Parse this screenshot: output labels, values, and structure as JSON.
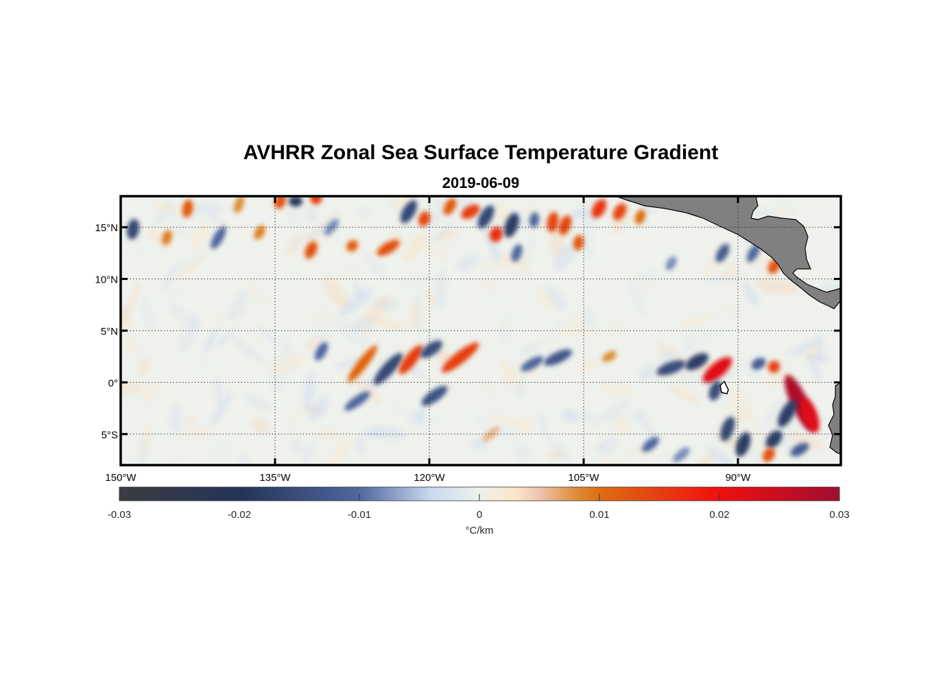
{
  "figure": {
    "title": "AVHRR Zonal Sea Surface Temperature Gradient",
    "subtitle": "2019-06-09"
  },
  "map": {
    "lon_range": [
      -150,
      -80
    ],
    "lat_range": [
      -8,
      18
    ],
    "lon_ticks": [
      {
        "value": -150,
        "label": "150°W"
      },
      {
        "value": -135,
        "label": "135°W"
      },
      {
        "value": -120,
        "label": "120°W"
      },
      {
        "value": -105,
        "label": "105°W"
      },
      {
        "value": -90,
        "label": "90°W"
      }
    ],
    "lat_ticks": [
      {
        "value": 15,
        "label": "15°N"
      },
      {
        "value": 10,
        "label": "10°N"
      },
      {
        "value": 5,
        "label": "5°N"
      },
      {
        "value": 0,
        "label": "0°"
      },
      {
        "value": -5,
        "label": "5°S"
      }
    ],
    "land_color": "#808080",
    "features": [
      {
        "lon": -148.8,
        "lat": 14.8,
        "value": -0.016,
        "len": 2.0,
        "ang": 80
      },
      {
        "lon": -145.5,
        "lat": 14.0,
        "value": 0.009,
        "len": 1.5,
        "ang": 70
      },
      {
        "lon": -143.5,
        "lat": 16.8,
        "value": 0.012,
        "len": 1.8,
        "ang": 80
      },
      {
        "lon": -140.5,
        "lat": 14.0,
        "value": -0.01,
        "len": 2.5,
        "ang": 60
      },
      {
        "lon": -138.5,
        "lat": 17.2,
        "value": 0.008,
        "len": 1.8,
        "ang": 70
      },
      {
        "lon": -136.5,
        "lat": 14.5,
        "value": 0.009,
        "len": 1.5,
        "ang": 60
      },
      {
        "lon": -134.5,
        "lat": 17.5,
        "value": 0.013,
        "len": 1.5,
        "ang": 70
      },
      {
        "lon": -133.0,
        "lat": 17.5,
        "value": -0.02,
        "len": 1.0,
        "ang": 90
      },
      {
        "lon": -131.0,
        "lat": 17.8,
        "value": 0.015,
        "len": 1.2,
        "ang": 70
      },
      {
        "lon": -131.5,
        "lat": 12.8,
        "value": 0.013,
        "len": 1.8,
        "ang": 65
      },
      {
        "lon": -129.5,
        "lat": 15.0,
        "value": -0.008,
        "len": 2.0,
        "ang": 50
      },
      {
        "lon": -127.5,
        "lat": 13.2,
        "value": 0.012,
        "len": 1.2,
        "ang": 40
      },
      {
        "lon": -124.0,
        "lat": 13.0,
        "value": 0.013,
        "len": 2.5,
        "ang": 30
      },
      {
        "lon": -122.0,
        "lat": 16.5,
        "value": -0.016,
        "len": 2.5,
        "ang": 60
      },
      {
        "lon": -120.5,
        "lat": 15.8,
        "value": 0.014,
        "len": 1.5,
        "ang": 70
      },
      {
        "lon": -118.0,
        "lat": 17.0,
        "value": 0.012,
        "len": 1.8,
        "ang": 60
      },
      {
        "lon": -116.0,
        "lat": 16.5,
        "value": 0.015,
        "len": 2.0,
        "ang": 30
      },
      {
        "lon": -114.5,
        "lat": 16.0,
        "value": -0.016,
        "len": 2.5,
        "ang": 60
      },
      {
        "lon": -113.5,
        "lat": 14.3,
        "value": 0.017,
        "len": 1.5,
        "ang": 70
      },
      {
        "lon": -112.0,
        "lat": 15.2,
        "value": -0.018,
        "len": 2.5,
        "ang": 70
      },
      {
        "lon": -111.5,
        "lat": 12.5,
        "value": -0.01,
        "len": 1.8,
        "ang": 70
      },
      {
        "lon": -109.8,
        "lat": 15.7,
        "value": -0.01,
        "len": 1.5,
        "ang": 80
      },
      {
        "lon": -108.0,
        "lat": 15.5,
        "value": 0.014,
        "len": 2.0,
        "ang": 80
      },
      {
        "lon": -106.8,
        "lat": 15.2,
        "value": 0.014,
        "len": 2.0,
        "ang": 70
      },
      {
        "lon": -105.5,
        "lat": 13.5,
        "value": 0.012,
        "len": 1.5,
        "ang": 80
      },
      {
        "lon": -103.5,
        "lat": 16.8,
        "value": 0.016,
        "len": 2.0,
        "ang": 60
      },
      {
        "lon": -101.5,
        "lat": 16.5,
        "value": 0.014,
        "len": 1.8,
        "ang": 60
      },
      {
        "lon": -99.5,
        "lat": 16.0,
        "value": 0.01,
        "len": 1.5,
        "ang": 70
      },
      {
        "lon": -91.5,
        "lat": 12.5,
        "value": -0.012,
        "len": 2.0,
        "ang": 60
      },
      {
        "lon": -88.5,
        "lat": 12.5,
        "value": -0.01,
        "len": 2.0,
        "ang": 60
      },
      {
        "lon": -86.5,
        "lat": 11.2,
        "value": 0.013,
        "len": 1.5,
        "ang": 60
      },
      {
        "lon": -96.5,
        "lat": 11.5,
        "value": -0.008,
        "len": 1.5,
        "ang": 60
      },
      {
        "lon": -126.5,
        "lat": 1.8,
        "value": 0.011,
        "len": 4.5,
        "ang": 52
      },
      {
        "lon": -124.0,
        "lat": 1.3,
        "value": -0.016,
        "len": 4.0,
        "ang": 48
      },
      {
        "lon": -121.8,
        "lat": 2.2,
        "value": 0.015,
        "len": 3.5,
        "ang": 52
      },
      {
        "lon": -119.8,
        "lat": 3.2,
        "value": -0.015,
        "len": 2.5,
        "ang": 35
      },
      {
        "lon": -117.0,
        "lat": 2.4,
        "value": 0.015,
        "len": 4.5,
        "ang": 38
      },
      {
        "lon": -119.5,
        "lat": -1.3,
        "value": -0.014,
        "len": 3.0,
        "ang": 35
      },
      {
        "lon": -130.5,
        "lat": 3.0,
        "value": -0.01,
        "len": 2.0,
        "ang": 60
      },
      {
        "lon": -127.0,
        "lat": -1.8,
        "value": -0.01,
        "len": 3.0,
        "ang": 35
      },
      {
        "lon": -110.0,
        "lat": 1.8,
        "value": -0.01,
        "len": 2.5,
        "ang": 30
      },
      {
        "lon": -107.5,
        "lat": 2.4,
        "value": -0.013,
        "len": 3.0,
        "ang": 25
      },
      {
        "lon": -102.5,
        "lat": 2.5,
        "value": 0.008,
        "len": 1.5,
        "ang": 30
      },
      {
        "lon": -96.5,
        "lat": 1.4,
        "value": -0.015,
        "len": 3.0,
        "ang": 20
      },
      {
        "lon": -94.0,
        "lat": 2.0,
        "value": -0.018,
        "len": 2.5,
        "ang": 30
      },
      {
        "lon": -92.0,
        "lat": 1.2,
        "value": 0.022,
        "len": 3.5,
        "ang": 40
      },
      {
        "lon": -92.2,
        "lat": -0.8,
        "value": -0.015,
        "len": 2.0,
        "ang": 70
      },
      {
        "lon": -88.0,
        "lat": 1.8,
        "value": -0.012,
        "len": 1.5,
        "ang": 30
      },
      {
        "lon": -86.5,
        "lat": 1.5,
        "value": 0.015,
        "len": 1.2,
        "ang": 60
      },
      {
        "lon": -84.0,
        "lat": -2.0,
        "value": 0.028,
        "len": 6.0,
        "ang": -65
      },
      {
        "lon": -83.0,
        "lat": -3.2,
        "value": 0.022,
        "len": 3.5,
        "ang": -70
      },
      {
        "lon": -85.2,
        "lat": -3.0,
        "value": -0.018,
        "len": 3.0,
        "ang": 60
      },
      {
        "lon": -86.5,
        "lat": -5.5,
        "value": -0.018,
        "len": 2.0,
        "ang": 50
      },
      {
        "lon": -89.5,
        "lat": -6.0,
        "value": -0.018,
        "len": 2.5,
        "ang": 70
      },
      {
        "lon": -91.0,
        "lat": -4.5,
        "value": -0.016,
        "len": 2.5,
        "ang": 70
      },
      {
        "lon": -87.0,
        "lat": -7.0,
        "value": 0.013,
        "len": 1.5,
        "ang": 60
      },
      {
        "lon": -84.0,
        "lat": -6.5,
        "value": -0.012,
        "len": 2.0,
        "ang": 30
      },
      {
        "lon": -98.5,
        "lat": -6.0,
        "value": -0.01,
        "len": 2.0,
        "ang": 40
      },
      {
        "lon": -95.5,
        "lat": -7.0,
        "value": -0.008,
        "len": 2.0,
        "ang": 40
      },
      {
        "lon": -114.0,
        "lat": -5.0,
        "value": 0.006,
        "len": 2.0,
        "ang": 40
      }
    ]
  },
  "colorbar": {
    "ticks": [
      -0.03,
      -0.02,
      -0.01,
      0,
      0.01,
      0.02,
      0.03
    ],
    "tick_labels": [
      "-0.03",
      "-0.02",
      "-0.01",
      "0",
      "0.01",
      "0.02",
      "0.03"
    ],
    "label": "°C/km",
    "colors": [
      {
        "v": -0.03,
        "c": "#3b3c40"
      },
      {
        "v": -0.02,
        "c": "#243458"
      },
      {
        "v": -0.01,
        "c": "#50669e"
      },
      {
        "v": -0.004,
        "c": "#c9daf0"
      },
      {
        "v": 0,
        "c": "#edf1ec"
      },
      {
        "v": 0.003,
        "c": "#fbe6c8"
      },
      {
        "v": 0.005,
        "c": "#edc4b0"
      },
      {
        "v": 0.008,
        "c": "#de8d36"
      },
      {
        "v": 0.01,
        "c": "#de6d11"
      },
      {
        "v": 0.02,
        "c": "#f00f0f"
      },
      {
        "v": 0.03,
        "c": "#a00e32"
      }
    ]
  }
}
